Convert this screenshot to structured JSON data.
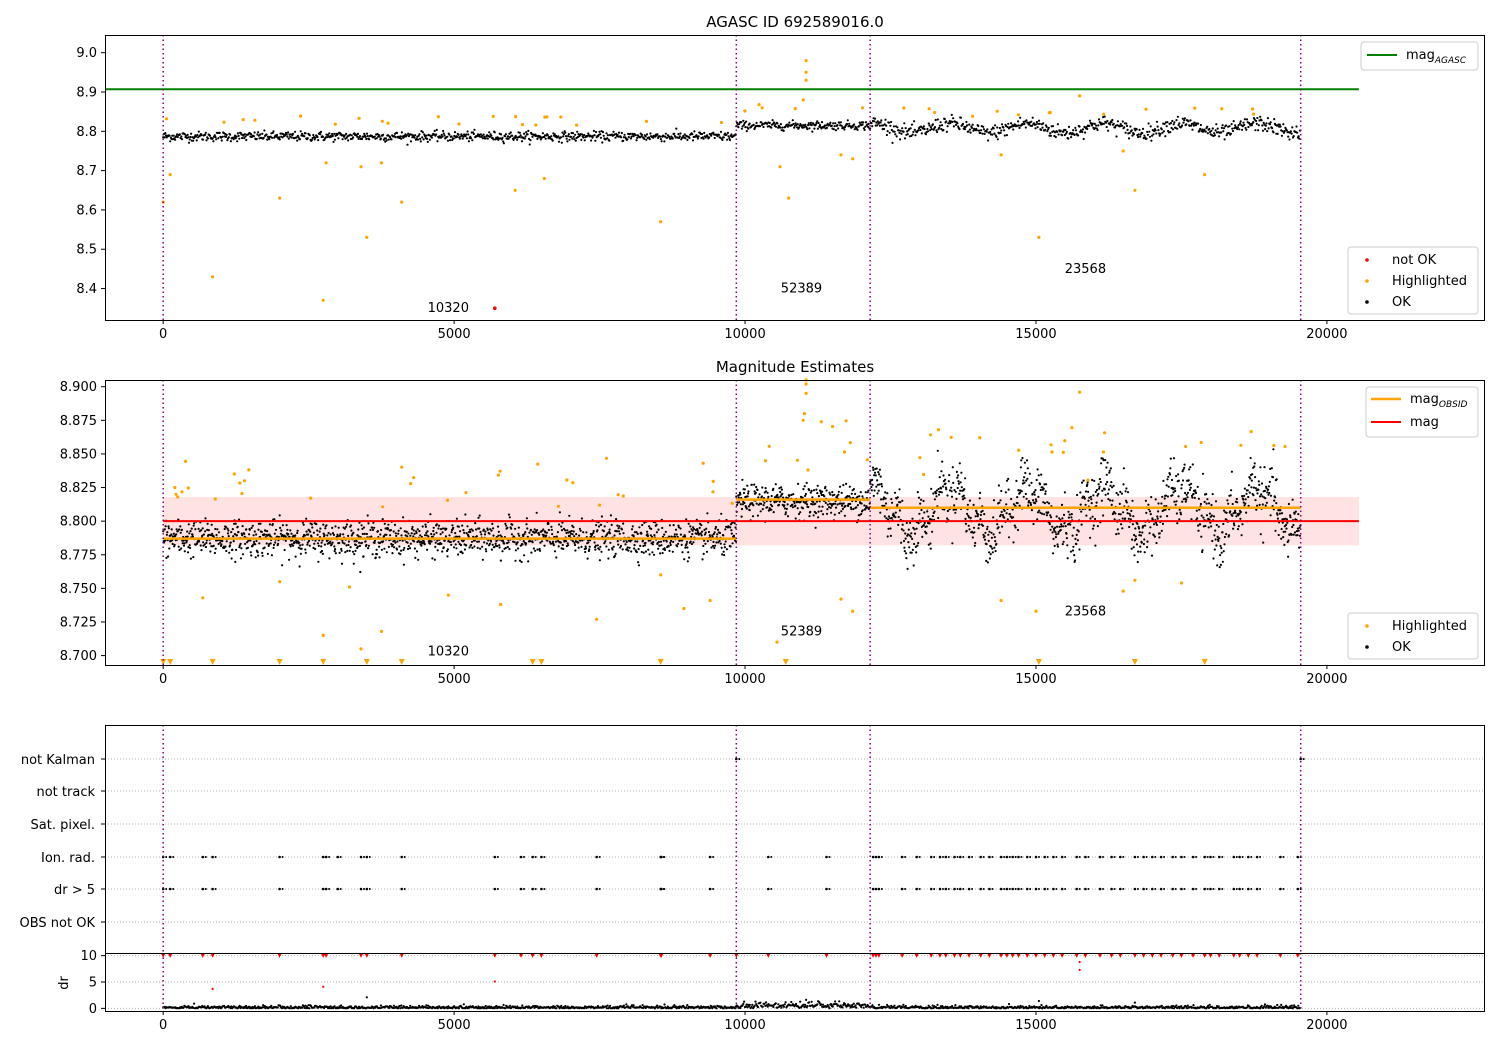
{
  "chart_data": [
    {
      "type": "scatter",
      "title": "AGASC ID 692589016.0",
      "xlim": [
        -1000,
        22700
      ],
      "ylim": [
        8.32,
        9.045
      ],
      "xticks": [
        0,
        5000,
        10000,
        15000,
        20000
      ],
      "yticks": [
        8.4,
        8.5,
        8.6,
        8.7,
        8.8,
        8.9,
        9.0
      ],
      "hlines": [
        {
          "name": "mag_AGASC",
          "y": 8.907,
          "color": "#008000",
          "x_range": [
            -1000,
            20550
          ]
        }
      ],
      "vlines": [
        0,
        9850,
        12150,
        19550
      ],
      "obsid_labels": [
        {
          "text": "10320",
          "x": 4900,
          "y": 8.34
        },
        {
          "text": "52389",
          "x": 10970,
          "y": 8.39
        },
        {
          "text": "23568",
          "x": 15850,
          "y": 8.44
        }
      ],
      "segments": [
        {
          "x": [
            0,
            9850
          ],
          "mean": 8.787,
          "noise": 0.011
        },
        {
          "x": [
            9850,
            12150
          ],
          "mean": 8.815,
          "noise": 0.01
        },
        {
          "x": [
            12150,
            19550
          ],
          "mean": 8.808,
          "noise": 0.017
        }
      ],
      "highlighted_points": [
        [
          0,
          8.62
        ],
        [
          120,
          8.69
        ],
        [
          850,
          8.43
        ],
        [
          2000,
          8.63
        ],
        [
          2750,
          8.37
        ],
        [
          2800,
          8.72
        ],
        [
          3400,
          8.71
        ],
        [
          3500,
          8.53
        ],
        [
          3750,
          8.72
        ],
        [
          4100,
          8.62
        ],
        [
          6050,
          8.65
        ],
        [
          6550,
          8.68
        ],
        [
          8550,
          8.57
        ],
        [
          10600,
          8.71
        ],
        [
          10750,
          8.63
        ],
        [
          11650,
          8.74
        ],
        [
          11850,
          8.73
        ],
        [
          15050,
          8.53
        ],
        [
          16700,
          8.65
        ],
        [
          17900,
          8.69
        ],
        [
          11050,
          8.98
        ],
        [
          11050,
          8.95
        ],
        [
          11050,
          8.93
        ],
        [
          11000,
          8.88
        ],
        [
          15750,
          8.89
        ],
        [
          14400,
          8.74
        ],
        [
          16500,
          8.75
        ]
      ],
      "not_ok_points": [
        [
          5700,
          8.35
        ]
      ],
      "legend": {
        "position": "top-right / lower-right",
        "entries": [
          {
            "label": "mag",
            "subscript": "AGASC",
            "color": "#008000",
            "kind": "line"
          },
          {
            "label": "not OK",
            "color": "#ff0000",
            "kind": "dot"
          },
          {
            "label": "Highlighted",
            "color": "#ffa500",
            "kind": "dot"
          },
          {
            "label": "OK",
            "color": "#000000",
            "kind": "dot"
          }
        ]
      }
    },
    {
      "type": "scatter",
      "title": "Magnitude Estimates",
      "xlim": [
        -1000,
        22700
      ],
      "ylim": [
        8.693,
        8.905
      ],
      "xticks": [
        0,
        5000,
        10000,
        15000,
        20000
      ],
      "yticks": [
        8.7,
        8.725,
        8.75,
        8.775,
        8.8,
        8.825,
        8.85,
        8.875,
        8.9
      ],
      "hlines": [
        {
          "name": "mag",
          "y": 8.8,
          "color": "#ff0000",
          "x_range": [
            0,
            20550
          ]
        }
      ],
      "band": {
        "y": [
          8.782,
          8.818
        ],
        "x_range": [
          0,
          20550
        ],
        "color": "#ffcccc"
      },
      "obsid_means": [
        {
          "x": [
            0,
            9850
          ],
          "y": 8.787
        },
        {
          "x": [
            9850,
            12150
          ],
          "y": 8.816
        },
        {
          "x": [
            12150,
            19550
          ],
          "y": 8.81
        }
      ],
      "vlines": [
        0,
        9850,
        12150,
        19550
      ],
      "obsid_labels": [
        {
          "text": "10320",
          "x": 4900,
          "y": 8.7
        },
        {
          "text": "52389",
          "x": 10970,
          "y": 8.715
        },
        {
          "text": "23568",
          "x": 15850,
          "y": 8.73
        }
      ],
      "highlighted_points": [
        [
          680,
          8.743
        ],
        [
          2000,
          8.755
        ],
        [
          2750,
          8.715
        ],
        [
          3200,
          8.751
        ],
        [
          3400,
          8.705
        ],
        [
          3750,
          8.718
        ],
        [
          4900,
          8.745
        ],
        [
          5800,
          8.738
        ],
        [
          7450,
          8.727
        ],
        [
          8550,
          8.76
        ],
        [
          8950,
          8.735
        ],
        [
          9400,
          8.741
        ],
        [
          10350,
          8.845
        ],
        [
          10550,
          8.71
        ],
        [
          11650,
          8.742
        ],
        [
          11850,
          8.733
        ],
        [
          14400,
          8.741
        ],
        [
          15000,
          8.733
        ],
        [
          16500,
          8.748
        ],
        [
          16700,
          8.756
        ],
        [
          17500,
          8.754
        ],
        [
          15750,
          8.896
        ],
        [
          11050,
          8.905
        ],
        [
          11050,
          8.902
        ],
        [
          11050,
          8.895
        ],
        [
          11020,
          8.88
        ],
        [
          11000,
          8.875
        ],
        [
          200,
          8.825
        ],
        [
          220,
          8.82
        ],
        [
          250,
          8.818
        ]
      ],
      "clipped_markers_x": [
        0,
        120,
        850,
        2000,
        2750,
        3500,
        4100,
        6350,
        6500,
        8550,
        10700,
        15050,
        16700,
        17900
      ],
      "legend": {
        "position": "top-right / lower-right",
        "entries": [
          {
            "label": "mag",
            "subscript": "OBSID",
            "color": "#ffa500",
            "kind": "line"
          },
          {
            "label": "mag",
            "color": "#ff0000",
            "kind": "line"
          },
          {
            "label": "Highlighted",
            "color": "#ffa500",
            "kind": "dot"
          },
          {
            "label": "OK",
            "color": "#000000",
            "kind": "dot"
          }
        ]
      }
    },
    {
      "type": "scatter",
      "title": "",
      "xlim": [
        -1000,
        22700
      ],
      "categories": [
        "not Kalman",
        "not track",
        "Sat. pixel.",
        "Ion. rad.",
        "dr > 5",
        "OBS not OK"
      ],
      "flag_x": {
        "not Kalman": [
          9850,
          19550
        ],
        "Ion. rad.": [
          0,
          120,
          680,
          850,
          2000,
          2750,
          2800,
          3000,
          3400,
          3500,
          4100,
          5700,
          6150,
          6350,
          6500,
          7450,
          8550,
          8560,
          9400,
          10400,
          11400,
          12200,
          12250,
          12300,
          12700,
          12950,
          13200,
          13350,
          13450,
          13600,
          13700,
          13850,
          14050,
          14200,
          14400,
          14500,
          14600,
          14700,
          14850,
          15000,
          15150,
          15300,
          15450,
          15700,
          15850,
          16100,
          16300,
          16450,
          16700,
          16850,
          17000,
          17150,
          17350,
          17500,
          17700,
          17900,
          18000,
          18150,
          18400,
          18500,
          18650,
          18800,
          19200,
          19500
        ],
        "dr > 5": [
          0,
          120,
          680,
          850,
          2000,
          2750,
          2800,
          3000,
          3400,
          3500,
          4100,
          5700,
          6150,
          6350,
          6500,
          7450,
          8550,
          8560,
          9400,
          10400,
          11400,
          12200,
          12250,
          12300,
          12700,
          12950,
          13200,
          13350,
          13450,
          13600,
          13700,
          13850,
          14050,
          14200,
          14400,
          14500,
          14600,
          14700,
          14850,
          15000,
          15150,
          15300,
          15450,
          15700,
          15850,
          16100,
          16300,
          16450,
          16700,
          16850,
          17000,
          17150,
          17350,
          17500,
          17700,
          17900,
          18000,
          18150,
          18400,
          18500,
          18650,
          18800,
          19200,
          19500
        ]
      },
      "vlines": [
        0,
        9850,
        12150,
        19550
      ]
    },
    {
      "type": "scatter",
      "title": "",
      "ylabel": "dr",
      "xlim": [
        -1000,
        22700
      ],
      "ylim": [
        -0.5,
        10.5
      ],
      "xticks": [
        0,
        5000,
        10000,
        15000,
        20000
      ],
      "yticks": [
        0,
        5,
        10
      ],
      "capped_markers_x": [
        0,
        120,
        680,
        850,
        2000,
        2750,
        2800,
        3400,
        3500,
        4100,
        5700,
        6150,
        6350,
        6500,
        7450,
        8550,
        8560,
        9400,
        9850,
        10400,
        11400,
        12200,
        12250,
        12300,
        12700,
        12950,
        13200,
        13350,
        13450,
        13600,
        13700,
        13850,
        14050,
        14200,
        14400,
        14500,
        14600,
        14700,
        14850,
        15000,
        15150,
        15300,
        15450,
        15700,
        15850,
        16100,
        16300,
        16450,
        16700,
        16850,
        17000,
        17150,
        17350,
        17500,
        17700,
        17900,
        18000,
        18150,
        18400,
        18500,
        18650,
        18800,
        19200,
        19500
      ],
      "extra_points": [
        [
          850,
          3.7
        ],
        [
          2750,
          4.1
        ],
        [
          3500,
          2.1
        ],
        [
          5700,
          5.1
        ],
        [
          15750,
          8.8
        ],
        [
          15750,
          7.3
        ],
        [
          11050,
          1.6
        ],
        [
          16700,
          1.1
        ],
        [
          15050,
          1.4
        ]
      ],
      "vlines": [
        0,
        9850,
        12150,
        19550
      ]
    }
  ]
}
